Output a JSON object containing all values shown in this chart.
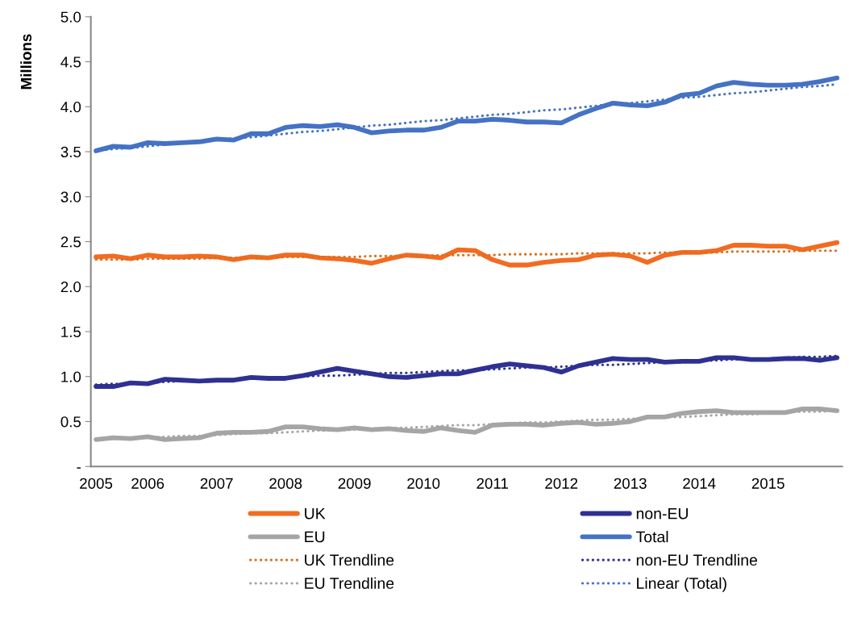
{
  "chart_data": {
    "type": "line",
    "ylabel": "Millions",
    "categories": [
      "2005",
      null,
      null,
      "2006",
      null,
      null,
      null,
      "2007",
      null,
      null,
      null,
      "2008",
      null,
      null,
      null,
      "2009",
      null,
      null,
      null,
      "2010",
      null,
      null,
      null,
      "2011",
      null,
      null,
      null,
      "2012",
      null,
      null,
      null,
      "2013",
      null,
      null,
      null,
      "2014",
      null,
      null,
      null,
      "2015",
      null,
      null,
      null,
      null
    ],
    "series": [
      {
        "name": "UK",
        "color": "#f26b21",
        "line_style": "solid",
        "values": [
          2.33,
          2.34,
          2.31,
          2.35,
          2.33,
          2.33,
          2.34,
          2.33,
          2.3,
          2.33,
          2.32,
          2.35,
          2.35,
          2.32,
          2.31,
          2.29,
          2.26,
          2.31,
          2.35,
          2.34,
          2.32,
          2.41,
          2.4,
          2.3,
          2.24,
          2.24,
          2.27,
          2.29,
          2.3,
          2.35,
          2.36,
          2.34,
          2.27,
          2.35,
          2.38,
          2.38,
          2.4,
          2.46,
          2.46,
          2.45,
          2.45,
          2.41,
          2.45,
          2.49
        ]
      },
      {
        "name": "EU",
        "color": "#a5a5a5",
        "line_style": "solid",
        "values": [
          0.3,
          0.32,
          0.31,
          0.33,
          0.3,
          0.31,
          0.32,
          0.37,
          0.38,
          0.38,
          0.39,
          0.44,
          0.44,
          0.42,
          0.41,
          0.43,
          0.41,
          0.42,
          0.4,
          0.39,
          0.43,
          0.4,
          0.38,
          0.46,
          0.47,
          0.47,
          0.46,
          0.48,
          0.49,
          0.47,
          0.48,
          0.5,
          0.55,
          0.55,
          0.59,
          0.61,
          0.62,
          0.6,
          0.6,
          0.6,
          0.6,
          0.64,
          0.64,
          0.62
        ]
      },
      {
        "name": "UK Trendline",
        "color": "#d9701e",
        "line_style": "dotted",
        "values": [
          2.3,
          2.3,
          2.3,
          2.31,
          2.31,
          2.31,
          2.31,
          2.32,
          2.32,
          2.32,
          2.32,
          2.33,
          2.33,
          2.33,
          2.33,
          2.33,
          2.34,
          2.34,
          2.34,
          2.34,
          2.35,
          2.35,
          2.35,
          2.35,
          2.36,
          2.36,
          2.36,
          2.36,
          2.37,
          2.37,
          2.37,
          2.37,
          2.37,
          2.38,
          2.38,
          2.38,
          2.38,
          2.39,
          2.39,
          2.39,
          2.39,
          2.4,
          2.4,
          2.4
        ]
      },
      {
        "name": "EU Trendline",
        "color": "#a5a5a5",
        "line_style": "dotted",
        "values": [
          0.3,
          0.31,
          0.31,
          0.32,
          0.33,
          0.34,
          0.34,
          0.35,
          0.36,
          0.37,
          0.37,
          0.38,
          0.39,
          0.4,
          0.4,
          0.41,
          0.42,
          0.43,
          0.43,
          0.44,
          0.45,
          0.46,
          0.46,
          0.47,
          0.48,
          0.49,
          0.49,
          0.5,
          0.51,
          0.52,
          0.52,
          0.53,
          0.54,
          0.55,
          0.55,
          0.56,
          0.57,
          0.58,
          0.58,
          0.59,
          0.6,
          0.61,
          0.61,
          0.62
        ]
      },
      {
        "name": "non-EU",
        "color": "#2e3192",
        "line_style": "solid",
        "values": [
          0.89,
          0.89,
          0.93,
          0.92,
          0.97,
          0.96,
          0.95,
          0.96,
          0.96,
          0.99,
          0.98,
          0.98,
          1.01,
          1.05,
          1.09,
          1.06,
          1.03,
          1.0,
          0.99,
          1.01,
          1.03,
          1.03,
          1.07,
          1.11,
          1.14,
          1.12,
          1.1,
          1.05,
          1.12,
          1.16,
          1.2,
          1.19,
          1.19,
          1.16,
          1.17,
          1.17,
          1.21,
          1.21,
          1.19,
          1.19,
          1.2,
          1.2,
          1.18,
          1.21
        ]
      },
      {
        "name": "Total",
        "color": "#4472c4",
        "line_style": "solid",
        "values": [
          3.51,
          3.56,
          3.55,
          3.6,
          3.59,
          3.6,
          3.61,
          3.64,
          3.63,
          3.7,
          3.7,
          3.77,
          3.79,
          3.78,
          3.8,
          3.77,
          3.71,
          3.73,
          3.74,
          3.74,
          3.77,
          3.84,
          3.84,
          3.86,
          3.85,
          3.83,
          3.83,
          3.82,
          3.91,
          3.98,
          4.04,
          4.02,
          4.01,
          4.05,
          4.13,
          4.15,
          4.23,
          4.27,
          4.25,
          4.24,
          4.24,
          4.25,
          4.28,
          4.32
        ]
      },
      {
        "name": "non-EU Trendline",
        "color": "#2e3192",
        "line_style": "dotted",
        "values": [
          0.91,
          0.92,
          0.92,
          0.93,
          0.94,
          0.95,
          0.95,
          0.96,
          0.97,
          0.98,
          0.98,
          0.99,
          1.0,
          1.01,
          1.01,
          1.02,
          1.03,
          1.04,
          1.04,
          1.05,
          1.06,
          1.07,
          1.07,
          1.08,
          1.09,
          1.1,
          1.1,
          1.11,
          1.12,
          1.13,
          1.13,
          1.14,
          1.15,
          1.16,
          1.16,
          1.17,
          1.18,
          1.19,
          1.19,
          1.2,
          1.21,
          1.22,
          1.22,
          1.23
        ]
      },
      {
        "name": "Linear (Total)",
        "color": "#4472c4",
        "line_style": "dotted",
        "values": [
          3.51,
          3.53,
          3.54,
          3.56,
          3.58,
          3.6,
          3.61,
          3.63,
          3.65,
          3.66,
          3.68,
          3.7,
          3.72,
          3.73,
          3.75,
          3.77,
          3.79,
          3.8,
          3.82,
          3.84,
          3.85,
          3.87,
          3.89,
          3.91,
          3.92,
          3.94,
          3.96,
          3.97,
          3.99,
          4.01,
          4.03,
          4.04,
          4.06,
          4.08,
          4.1,
          4.11,
          4.13,
          4.15,
          4.16,
          4.18,
          4.2,
          4.22,
          4.23,
          4.25
        ]
      }
    ],
    "ylim": [
      0,
      5
    ],
    "yticks": [
      {
        "value": 0,
        "label": "-"
      },
      0.5,
      {
        "value": 1,
        "label": "1.0"
      },
      1.5,
      {
        "value": 2,
        "label": "2.0"
      },
      2.5,
      {
        "value": 3,
        "label": "3.0"
      },
      3.5,
      {
        "value": 4,
        "label": "4.0"
      },
      4.5,
      {
        "value": 5,
        "label": "5.0"
      }
    ],
    "grid": false,
    "legend": "bottom",
    "marker": "none"
  }
}
